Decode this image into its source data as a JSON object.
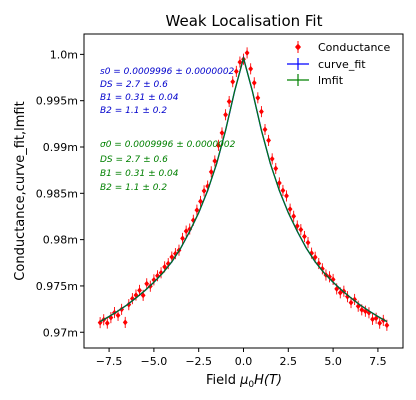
{
  "chart_data": {
    "type": "scatter",
    "title": "Weak Localisation Fit",
    "xlabel_main": "Field ",
    "xlabel_mu": "μ",
    "xlabel_sub": "0",
    "xlabel_rest": "H(T)",
    "ylabel": "Conductance,curve_fit,lmfit",
    "xlim": [
      -8.9,
      8.9
    ],
    "ylim": [
      0.9683,
      1.0022
    ],
    "xticks": [
      -7.5,
      -5.0,
      -2.5,
      0.0,
      2.5,
      5.0,
      7.5
    ],
    "xtick_labels": [
      "−7.5",
      "−5.0",
      "−2.5",
      "0.0",
      "2.5",
      "5.0",
      "7.5"
    ],
    "yticks": [
      0.97,
      0.975,
      0.98,
      0.985,
      0.99,
      0.995,
      1.0
    ],
    "ytick_labels": [
      "0.97m",
      "0.975m",
      "0.98m",
      "0.985m",
      "0.99m",
      "0.995m",
      "1.0m"
    ],
    "grid": false,
    "legend_position": "top-right",
    "legend": [
      {
        "label": "Conductance",
        "color": "#ff0000",
        "marker": "errorbar-diamond"
      },
      {
        "label": "curve_fit",
        "color": "#0000ff",
        "marker": "cross-line"
      },
      {
        "label": "lmfit",
        "color": "#008000",
        "marker": "cross-line"
      }
    ],
    "annotations": {
      "curve_fit": {
        "color": "#0000cc",
        "lines": [
          "s0 = 0.0009996 ± 0.0000002",
          "DS = 2.7 ± 0.6",
          "B1 = 0.31 ± 0.04",
          "B2 = 1.1 ± 0.2"
        ]
      },
      "lmfit": {
        "color": "#008000",
        "lines": [
          "σ0 = 0.0009996 ± 0.0000002",
          "DS = 2.7 ± 0.6",
          "B1 = 0.31 ± 0.04",
          "B2 = 1.1 ± 0.2"
        ]
      }
    },
    "series": [
      {
        "name": "Conductance",
        "color": "#ff0000",
        "x": [
          -8.0,
          -7.8,
          -7.6,
          -7.4,
          -7.2,
          -7.0,
          -6.8,
          -6.6,
          -6.4,
          -6.2,
          -6.0,
          -5.8,
          -5.6,
          -5.4,
          -5.2,
          -5.0,
          -4.8,
          -4.6,
          -4.4,
          -4.2,
          -4.0,
          -3.8,
          -3.6,
          -3.4,
          -3.2,
          -3.0,
          -2.8,
          -2.6,
          -2.4,
          -2.2,
          -2.0,
          -1.8,
          -1.6,
          -1.4,
          -1.2,
          -1.0,
          -0.8,
          -0.6,
          -0.4,
          -0.2,
          0.0,
          0.2,
          0.4,
          0.6,
          0.8,
          1.0,
          1.2,
          1.4,
          1.6,
          1.8,
          2.0,
          2.2,
          2.4,
          2.6,
          2.8,
          3.0,
          3.2,
          3.4,
          3.6,
          3.8,
          4.0,
          4.2,
          4.4,
          4.6,
          4.8,
          5.0,
          5.2,
          5.4,
          5.6,
          5.8,
          6.0,
          6.2,
          6.4,
          6.6,
          6.8,
          7.0,
          7.2,
          7.4,
          7.6,
          7.8,
          8.0
        ],
        "y": [
          0.97104,
          0.97135,
          0.97099,
          0.97158,
          0.97212,
          0.97182,
          0.97247,
          0.97106,
          0.97298,
          0.97363,
          0.97401,
          0.97452,
          0.97398,
          0.97523,
          0.97497,
          0.97566,
          0.9761,
          0.97642,
          0.97706,
          0.97741,
          0.97812,
          0.97849,
          0.97886,
          0.98013,
          0.98092,
          0.98114,
          0.98209,
          0.98318,
          0.98413,
          0.98527,
          0.98578,
          0.98732,
          0.98849,
          0.99018,
          0.99152,
          0.99348,
          0.99491,
          0.99705,
          0.99816,
          0.99917,
          0.99948,
          1.00016,
          0.99844,
          0.99693,
          0.99531,
          0.99382,
          0.99189,
          0.99071,
          0.98872,
          0.98768,
          0.98612,
          0.98531,
          0.98472,
          0.98329,
          0.98252,
          0.98147,
          0.98108,
          0.98034,
          0.97968,
          0.97854,
          0.9781,
          0.97742,
          0.97685,
          0.97618,
          0.97599,
          0.9757,
          0.97468,
          0.97426,
          0.97443,
          0.97384,
          0.9732,
          0.97354,
          0.97281,
          0.97242,
          0.97227,
          0.9721,
          0.9714,
          0.97151,
          0.97098,
          0.97128,
          0.97075
        ],
        "error": 0.0006
      },
      {
        "name": "curve_fit",
        "color": "#0000ff",
        "x": [
          -8.0,
          -7.5,
          -7.0,
          -6.5,
          -6.0,
          -5.5,
          -5.0,
          -4.5,
          -4.0,
          -3.5,
          -3.0,
          -2.5,
          -2.0,
          -1.5,
          -1.0,
          -0.5,
          0.0,
          0.5,
          1.0,
          1.5,
          2.0,
          2.5,
          3.0,
          3.5,
          4.0,
          4.5,
          5.0,
          5.5,
          6.0,
          6.5,
          7.0,
          7.5,
          8.0
        ],
        "y": [
          0.97115,
          0.9717,
          0.9723,
          0.97295,
          0.9737,
          0.9745,
          0.9754,
          0.9764,
          0.9776,
          0.9791,
          0.9809,
          0.9829,
          0.9853,
          0.9882,
          0.9918,
          0.996,
          0.9996,
          0.996,
          0.9918,
          0.9882,
          0.9853,
          0.9829,
          0.9809,
          0.9791,
          0.9776,
          0.9764,
          0.9754,
          0.9745,
          0.9737,
          0.97295,
          0.9723,
          0.9717,
          0.97115
        ]
      },
      {
        "name": "lmfit",
        "color": "#008000",
        "x": [
          -8.0,
          -7.5,
          -7.0,
          -6.5,
          -6.0,
          -5.5,
          -5.0,
          -4.5,
          -4.0,
          -3.5,
          -3.0,
          -2.5,
          -2.0,
          -1.5,
          -1.0,
          -0.5,
          0.0,
          0.5,
          1.0,
          1.5,
          2.0,
          2.5,
          3.0,
          3.5,
          4.0,
          4.5,
          5.0,
          5.5,
          6.0,
          6.5,
          7.0,
          7.5,
          8.0
        ],
        "y": [
          0.97115,
          0.9717,
          0.9723,
          0.97295,
          0.9737,
          0.9745,
          0.9754,
          0.9764,
          0.9776,
          0.9791,
          0.9809,
          0.9829,
          0.9853,
          0.9882,
          0.9918,
          0.996,
          0.9996,
          0.996,
          0.9918,
          0.9882,
          0.9853,
          0.9829,
          0.9809,
          0.9791,
          0.9776,
          0.9764,
          0.9754,
          0.9745,
          0.9737,
          0.97295,
          0.9723,
          0.9717,
          0.97115
        ]
      }
    ]
  }
}
